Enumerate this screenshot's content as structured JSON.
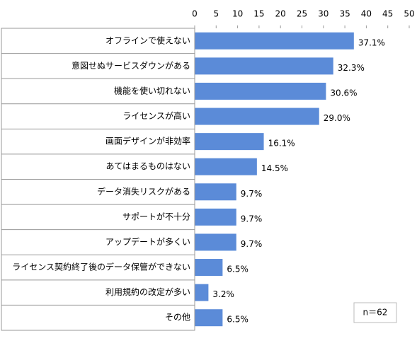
{
  "chart_data": {
    "type": "bar",
    "orientation": "horizontal",
    "categories": [
      "オフラインで使えない",
      "意図せぬサービスダウンがある",
      "機能を使い切れない",
      "ライセンスが高い",
      "画面デザインが非効率",
      "あてはまるものはない",
      "データ消失リスクがある",
      "サポートが不十分",
      "アップデートが多くい",
      "ライセンス契約終了後のデータ保管ができない",
      "利用規約の改定が多い",
      "その他"
    ],
    "values": [
      37.1,
      32.3,
      30.6,
      29.0,
      16.1,
      14.5,
      9.7,
      9.7,
      9.7,
      6.5,
      3.2,
      6.5
    ],
    "value_labels": [
      "37.1%",
      "32.3%",
      "30.6%",
      "29.0%",
      "16.1%",
      "14.5%",
      "9.7%",
      "9.7%",
      "9.7%",
      "6.5%",
      "3.2%",
      "6.5%"
    ],
    "color": "#5b8bd8",
    "xlim": [
      0,
      50
    ],
    "xticks": [
      0,
      5,
      10,
      15,
      20,
      25,
      30,
      35,
      40,
      45,
      50
    ],
    "annotation": "n＝62"
  }
}
